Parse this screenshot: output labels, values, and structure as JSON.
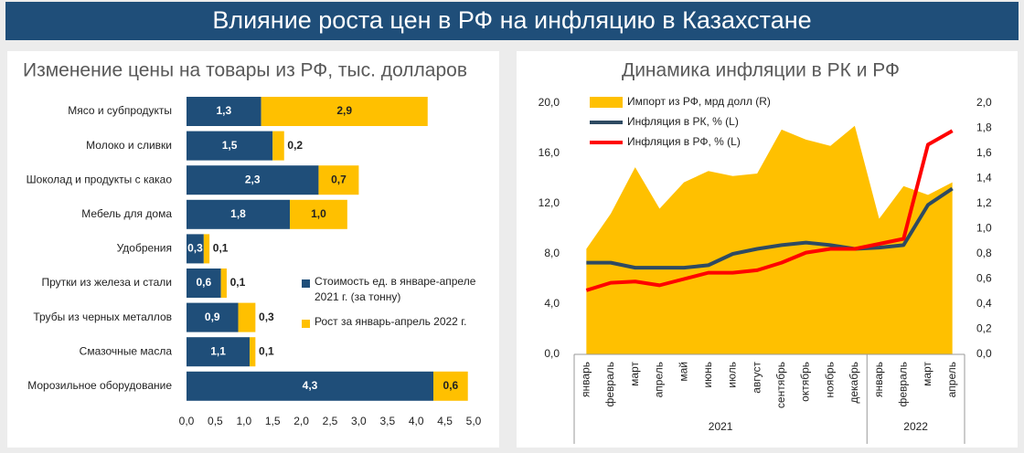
{
  "title": "Влияние роста цен в РФ на инфляцию в Казахстане",
  "chart_data": [
    {
      "type": "hbar-stacked",
      "title": "Изменение цены на товары из РФ, тыс. долларов",
      "categories": [
        "Мясо и субпродукты",
        "Молоко и сливки",
        "Шоколад и продукты с какао",
        "Мебель для дома",
        "Удобрения",
        "Прутки из железа и стали",
        "Трубы из черных металлов",
        "Смазочные масла",
        "Морозильное оборудование"
      ],
      "series": [
        {
          "name": "Стоимость ед. в январе-апреле 2021 г. (за тонну)",
          "color": "#1f4e79",
          "values": [
            1.3,
            1.5,
            2.3,
            1.8,
            0.3,
            0.6,
            0.9,
            1.1,
            4.3
          ],
          "value_labels": [
            "1,3",
            "1,5",
            "2,3",
            "1,8",
            "0,3",
            "0,6",
            "0,9",
            "1,1",
            "4,3"
          ]
        },
        {
          "name": "Рост за январь-апрель 2022 г.",
          "color": "#ffc000",
          "values": [
            2.9,
            0.2,
            0.7,
            1.0,
            0.1,
            0.1,
            0.3,
            0.1,
            0.6
          ],
          "value_labels": [
            "2,9",
            "0,2",
            "0,7",
            "1,0",
            "0,1",
            "0,1",
            "0,3",
            "0,1",
            "0,6"
          ]
        }
      ],
      "xlim": [
        0,
        5
      ],
      "xticks": [
        {
          "value": 0,
          "label": "0,0"
        },
        {
          "value": 0.5,
          "label": "0,5"
        },
        {
          "value": 1,
          "label": "1,0"
        },
        {
          "value": 1.5,
          "label": "1,5"
        },
        {
          "value": 2,
          "label": "2,0"
        },
        {
          "value": 2.5,
          "label": "2,5"
        },
        {
          "value": 3,
          "label": "3,0"
        },
        {
          "value": 3.5,
          "label": "3,5"
        },
        {
          "value": 4,
          "label": "4,0"
        },
        {
          "value": 4.5,
          "label": "4,5"
        },
        {
          "value": 5,
          "label": "5,0"
        }
      ]
    },
    {
      "type": "area-line",
      "title": "Динамика инфляции в РК и РФ",
      "categories": [
        "январь",
        "февраль",
        "март",
        "апрель",
        "май",
        "июнь",
        "июль",
        "август",
        "сентябрь",
        "октябрь",
        "ноябрь",
        "декабрь",
        "январь",
        "февраль",
        "март",
        "апрель"
      ],
      "groups": [
        {
          "label": "2021",
          "size": 12
        },
        {
          "label": "2022",
          "size": 4
        }
      ],
      "series": [
        {
          "name": "Импорт из РФ, мрд долл (R)",
          "color": "#ffc000",
          "axis": "y2",
          "kind": "area",
          "values": [
            0.84,
            1.12,
            1.49,
            1.16,
            1.37,
            1.46,
            1.42,
            1.44,
            1.79,
            1.71,
            1.66,
            1.82,
            1.08,
            1.34,
            1.27,
            1.37
          ]
        },
        {
          "name": "Инфляция в РК, % (L)",
          "color": "#2e4a62",
          "kind": "line",
          "values": [
            7.3,
            7.3,
            6.9,
            6.9,
            6.9,
            7.1,
            8.0,
            8.4,
            8.7,
            8.9,
            8.7,
            8.4,
            8.5,
            8.7,
            11.9,
            13.2
          ]
        },
        {
          "name": "Инфляция в РФ, % (L)",
          "color": "#ff0000",
          "kind": "line",
          "values": [
            5.1,
            5.7,
            5.8,
            5.5,
            6.0,
            6.5,
            6.5,
            6.7,
            7.3,
            8.1,
            8.4,
            8.4,
            8.8,
            9.2,
            16.7,
            17.8
          ]
        }
      ],
      "ylim": [
        0,
        20
      ],
      "yticks": [
        {
          "value": 0,
          "label": "0,0"
        },
        {
          "value": 4,
          "label": "4,0"
        },
        {
          "value": 8,
          "label": "8,0"
        },
        {
          "value": 12,
          "label": "12,0"
        },
        {
          "value": 16,
          "label": "16,0"
        },
        {
          "value": 20,
          "label": "20,0"
        }
      ],
      "y2lim": [
        0,
        2
      ],
      "y2ticks": [
        {
          "value": 0,
          "label": "0,0"
        },
        {
          "value": 0.2,
          "label": "0,2"
        },
        {
          "value": 0.4,
          "label": "0,4"
        },
        {
          "value": 0.6,
          "label": "0,6"
        },
        {
          "value": 0.8,
          "label": "0,8"
        },
        {
          "value": 1,
          "label": "1,0"
        },
        {
          "value": 1.2,
          "label": "1,2"
        },
        {
          "value": 1.4,
          "label": "1,4"
        },
        {
          "value": 1.6,
          "label": "1,6"
        },
        {
          "value": 1.8,
          "label": "1,8"
        },
        {
          "value": 2,
          "label": "2,0"
        }
      ]
    }
  ]
}
